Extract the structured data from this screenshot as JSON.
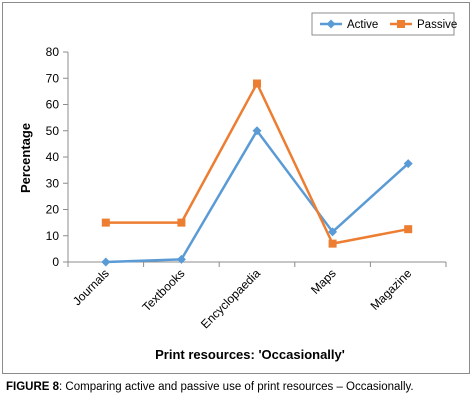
{
  "chart_data": {
    "type": "line",
    "categories": [
      "Journals",
      "Textbooks",
      "Encyclopaedia",
      "Maps",
      "Magazine"
    ],
    "series": [
      {
        "name": "Active",
        "values": [
          0,
          1,
          50,
          11.5,
          37.5
        ],
        "color": "#5b9bd5",
        "marker": "diamond"
      },
      {
        "name": "Passive",
        "values": [
          15,
          15,
          68,
          7,
          12.5
        ],
        "color": "#ed7d31",
        "marker": "square"
      }
    ],
    "xlabel": "Print resources: 'Occasionally'",
    "ylabel": "Percentage",
    "ylim": [
      0,
      80
    ],
    "yticks": [
      "0",
      "10",
      "20",
      "30",
      "40",
      "50",
      "60",
      "70",
      "80"
    ],
    "grid": false,
    "legend": "top-right"
  },
  "caption": {
    "label": "FIGURE 8",
    "text": ": Comparing active and passive use of print resources – Occasionally."
  }
}
